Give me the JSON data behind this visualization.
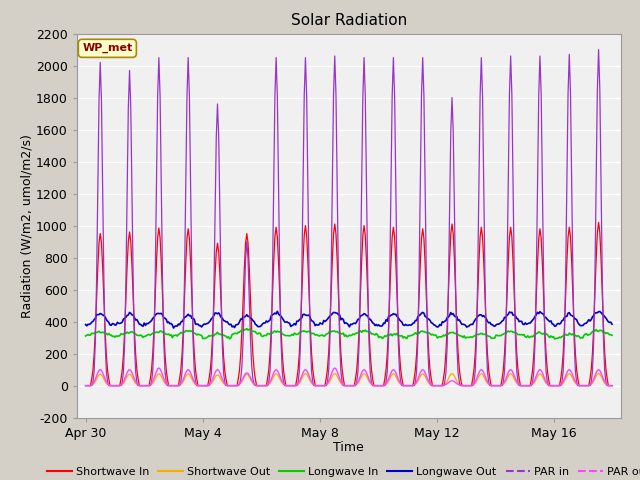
{
  "title": "Solar Radiation",
  "xlabel": "Time",
  "ylabel": "Radiation (W/m2, umol/m2/s)",
  "ylim": [
    -200,
    2200
  ],
  "yticks": [
    -200,
    0,
    200,
    400,
    600,
    800,
    1000,
    1200,
    1400,
    1600,
    1800,
    2000,
    2200
  ],
  "fig_bg_color": "#d4d0c8",
  "plot_bg_color": "#f0f0f0",
  "watermark": "WP_met",
  "watermark_bg": "#ffffcc",
  "watermark_border": "#aa8800",
  "watermark_text_color": "#8b0000",
  "legend_entries": [
    {
      "label": "Shortwave In",
      "color": "#ff0000",
      "ls": "-"
    },
    {
      "label": "Shortwave Out",
      "color": "#ffaa00",
      "ls": "-"
    },
    {
      "label": "Longwave In",
      "color": "#00cc00",
      "ls": "-"
    },
    {
      "label": "Longwave Out",
      "color": "#0000cc",
      "ls": "-"
    },
    {
      "label": "PAR in",
      "color": "#9933cc",
      "ls": "--"
    },
    {
      "label": "PAR out",
      "color": "#ff44ff",
      "ls": "--"
    }
  ],
  "n_days": 18,
  "xtick_labels": [
    "Apr 30",
    "May 4",
    "May 8",
    "May 12",
    "May 16"
  ],
  "xtick_positions": [
    0,
    4,
    8,
    12,
    16
  ]
}
